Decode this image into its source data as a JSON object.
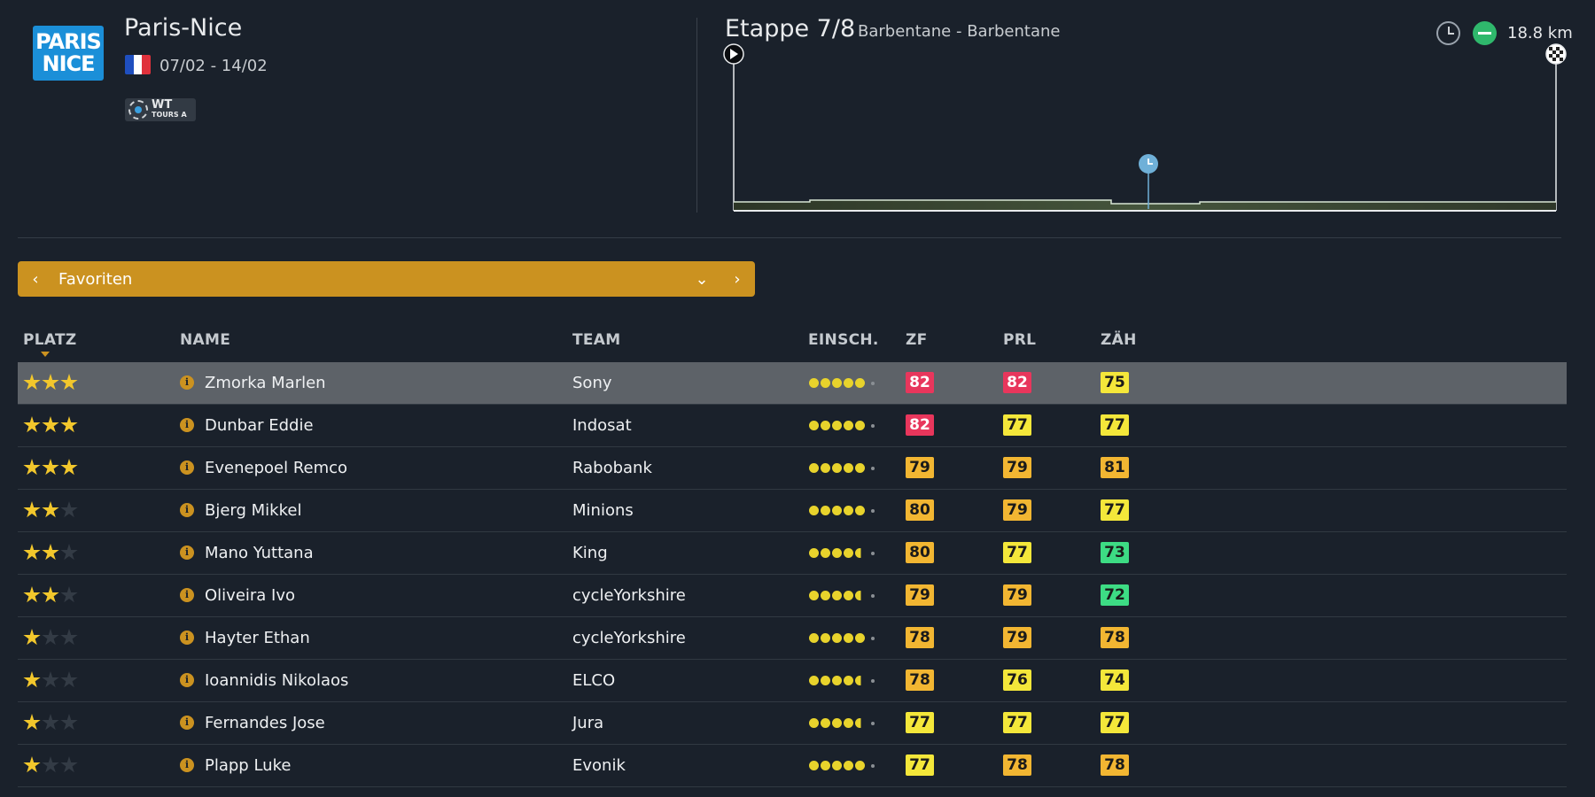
{
  "race": {
    "logo_text": "PARIS NICE",
    "name": "Paris-Nice",
    "dates": "07/02 - 14/02",
    "badge_line1": "WT",
    "badge_line2": "TOURS A",
    "flag_colors": [
      "#1f4fbf",
      "#ffffff",
      "#e0313c"
    ]
  },
  "stage": {
    "label": "Etappe 7/8",
    "route": "Barbentane - Barbentane",
    "distance": "18.8 km",
    "icons": [
      "clock-icon",
      "flat-stage-icon",
      "start-flag-icon",
      "finish-flag-icon"
    ]
  },
  "selector": {
    "label": "Favoriten",
    "prev_icon": "chevron-left-icon",
    "dropdown_icon": "chevron-down-icon",
    "next_icon": "chevron-right-icon"
  },
  "columns": {
    "platz": "PLATZ",
    "name": "NAME",
    "team": "TEAM",
    "einsch": "EINSCH.",
    "zf": "ZF",
    "prl": "PRL",
    "zah": "ZÄH"
  },
  "colors": {
    "accent": "#cb9220",
    "red": "#e8365c",
    "yellow": "#f4e73a",
    "orange": "#f2b632",
    "green": "#3ddc84"
  },
  "riders": [
    {
      "stars": 3,
      "name": "Zmorka Marlen",
      "team": "Sony",
      "dots": "5",
      "zf": {
        "v": "82",
        "c": "red"
      },
      "prl": {
        "v": "82",
        "c": "red"
      },
      "zah": {
        "v": "75",
        "c": "yellow"
      }
    },
    {
      "stars": 3,
      "name": "Dunbar Eddie",
      "team": "Indosat",
      "dots": "5",
      "zf": {
        "v": "82",
        "c": "red"
      },
      "prl": {
        "v": "77",
        "c": "yellow"
      },
      "zah": {
        "v": "77",
        "c": "yellow"
      }
    },
    {
      "stars": 3,
      "name": "Evenepoel Remco",
      "team": "Rabobank",
      "dots": "5",
      "zf": {
        "v": "79",
        "c": "orange"
      },
      "prl": {
        "v": "79",
        "c": "orange"
      },
      "zah": {
        "v": "81",
        "c": "orange"
      }
    },
    {
      "stars": 2,
      "name": "Bjerg Mikkel",
      "team": "Minions",
      "dots": "5",
      "zf": {
        "v": "80",
        "c": "orange"
      },
      "prl": {
        "v": "79",
        "c": "orange"
      },
      "zah": {
        "v": "77",
        "c": "yellow"
      }
    },
    {
      "stars": 2,
      "name": "Mano Yuttana",
      "team": "King",
      "dots": "4.5",
      "zf": {
        "v": "80",
        "c": "orange"
      },
      "prl": {
        "v": "77",
        "c": "yellow"
      },
      "zah": {
        "v": "73",
        "c": "green"
      }
    },
    {
      "stars": 2,
      "name": "Oliveira Ivo",
      "team": "cycleYorkshire",
      "dots": "4.5",
      "zf": {
        "v": "79",
        "c": "orange"
      },
      "prl": {
        "v": "79",
        "c": "orange"
      },
      "zah": {
        "v": "72",
        "c": "green"
      }
    },
    {
      "stars": 1,
      "name": "Hayter Ethan",
      "team": "cycleYorkshire",
      "dots": "5",
      "zf": {
        "v": "78",
        "c": "orange"
      },
      "prl": {
        "v": "79",
        "c": "orange"
      },
      "zah": {
        "v": "78",
        "c": "orange"
      }
    },
    {
      "stars": 1,
      "name": "Ioannidis Nikolaos",
      "team": "ELCO",
      "dots": "4.5",
      "zf": {
        "v": "78",
        "c": "orange"
      },
      "prl": {
        "v": "76",
        "c": "yellow"
      },
      "zah": {
        "v": "74",
        "c": "yellow"
      }
    },
    {
      "stars": 1,
      "name": "Fernandes Jose",
      "team": "Jura",
      "dots": "4.5",
      "zf": {
        "v": "77",
        "c": "yellow"
      },
      "prl": {
        "v": "77",
        "c": "yellow"
      },
      "zah": {
        "v": "77",
        "c": "yellow"
      }
    },
    {
      "stars": 1,
      "name": "Plapp Luke",
      "team": "Evonik",
      "dots": "5",
      "zf": {
        "v": "77",
        "c": "yellow"
      },
      "prl": {
        "v": "78",
        "c": "orange"
      },
      "zah": {
        "v": "78",
        "c": "orange"
      }
    }
  ]
}
